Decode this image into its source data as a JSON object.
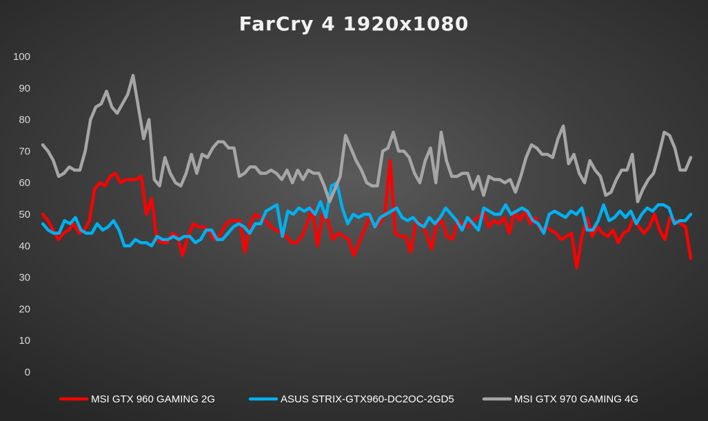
{
  "chart_data": {
    "type": "line",
    "title": "FarCry 4 1920x1080",
    "xlabel": "",
    "ylabel": "",
    "ylim": [
      0,
      100
    ],
    "yticks": [
      0,
      10,
      20,
      30,
      40,
      50,
      60,
      70,
      80,
      90,
      100
    ],
    "grid": false,
    "legend_position": "bottom",
    "series": [
      {
        "name": "MSI GTX 960 GAMING 2G",
        "color": "#ff0000",
        "values": [
          50,
          48,
          45,
          42,
          44,
          45,
          47,
          44,
          45,
          48,
          58,
          60,
          59,
          62,
          63,
          60,
          61,
          61,
          61,
          62,
          50,
          55,
          42,
          41,
          41,
          44,
          43,
          37,
          43,
          47,
          46,
          46,
          45,
          42,
          43,
          46,
          48,
          48,
          48,
          38,
          47,
          50,
          49,
          48,
          46,
          45,
          44,
          43,
          41,
          41,
          43,
          47,
          52,
          40,
          50,
          48,
          42,
          44,
          43,
          42,
          37,
          41,
          45,
          49,
          46,
          47,
          50,
          67,
          44,
          43,
          43,
          38,
          48,
          47,
          44,
          39,
          47,
          48,
          43,
          42,
          48,
          47,
          46,
          48,
          49,
          51,
          46,
          48,
          47,
          49,
          44,
          51,
          48,
          51,
          47,
          49,
          45,
          46,
          45,
          44,
          42,
          43,
          44,
          33,
          43,
          49,
          43,
          46,
          44,
          43,
          45,
          41,
          44,
          45,
          49,
          46,
          44,
          46,
          50,
          45,
          42,
          49,
          48,
          47,
          46,
          36
        ]
      },
      {
        "name": "ASUS STRIX-GTX960-DC2OC-2GD5",
        "color": "#00b0f0",
        "values": [
          47,
          45,
          44,
          44,
          48,
          47,
          49,
          45,
          44,
          44,
          47,
          45,
          46,
          48,
          45,
          40,
          40,
          42,
          41,
          41,
          40,
          43,
          42,
          42,
          43,
          42,
          43,
          43,
          41,
          42,
          45,
          45,
          42,
          42,
          44,
          46,
          47,
          46,
          44,
          47,
          47,
          51,
          52,
          53,
          43,
          51,
          50,
          52,
          51,
          52,
          50,
          54,
          49,
          59,
          60,
          52,
          47,
          50,
          49,
          50,
          50,
          46,
          49,
          50,
          51,
          52,
          49,
          48,
          49,
          47,
          46,
          49,
          47,
          49,
          52,
          50,
          48,
          45,
          49,
          47,
          45,
          52,
          51,
          50,
          50,
          53,
          50,
          51,
          52,
          51,
          48,
          47,
          44,
          50,
          51,
          50,
          49,
          51,
          50,
          52,
          45,
          45,
          48,
          53,
          48,
          49,
          51,
          49,
          51,
          47,
          50,
          52,
          51,
          53,
          53,
          52,
          47,
          48,
          48,
          50
        ]
      },
      {
        "name": "MSI GTX 970 GAMING 4G",
        "color": "#a6a6a6",
        "values": [
          72,
          70,
          67,
          62,
          63,
          65,
          64,
          64,
          70,
          80,
          84,
          85,
          89,
          84,
          82,
          85,
          88,
          94,
          84,
          74,
          80,
          61,
          59,
          68,
          63,
          60,
          59,
          63,
          69,
          63,
          69,
          68,
          71,
          73,
          73,
          71,
          71,
          62,
          63,
          65,
          65,
          63,
          63,
          64,
          63,
          61,
          64,
          60,
          64,
          61,
          64,
          63,
          63,
          59,
          54,
          58,
          62,
          75,
          71,
          67,
          64,
          60,
          59,
          59,
          70,
          71,
          76,
          70,
          70,
          68,
          63,
          60,
          67,
          71,
          60,
          76,
          67,
          62,
          62,
          63,
          63,
          58,
          62,
          56,
          62,
          61,
          61,
          60,
          61,
          57,
          62,
          68,
          72,
          71,
          69,
          69,
          68,
          74,
          78,
          66,
          69,
          63,
          60,
          67,
          64,
          62,
          56,
          57,
          61,
          64,
          64,
          69,
          54,
          58,
          61,
          63,
          69,
          76,
          75,
          71,
          64,
          64,
          68
        ]
      }
    ]
  }
}
